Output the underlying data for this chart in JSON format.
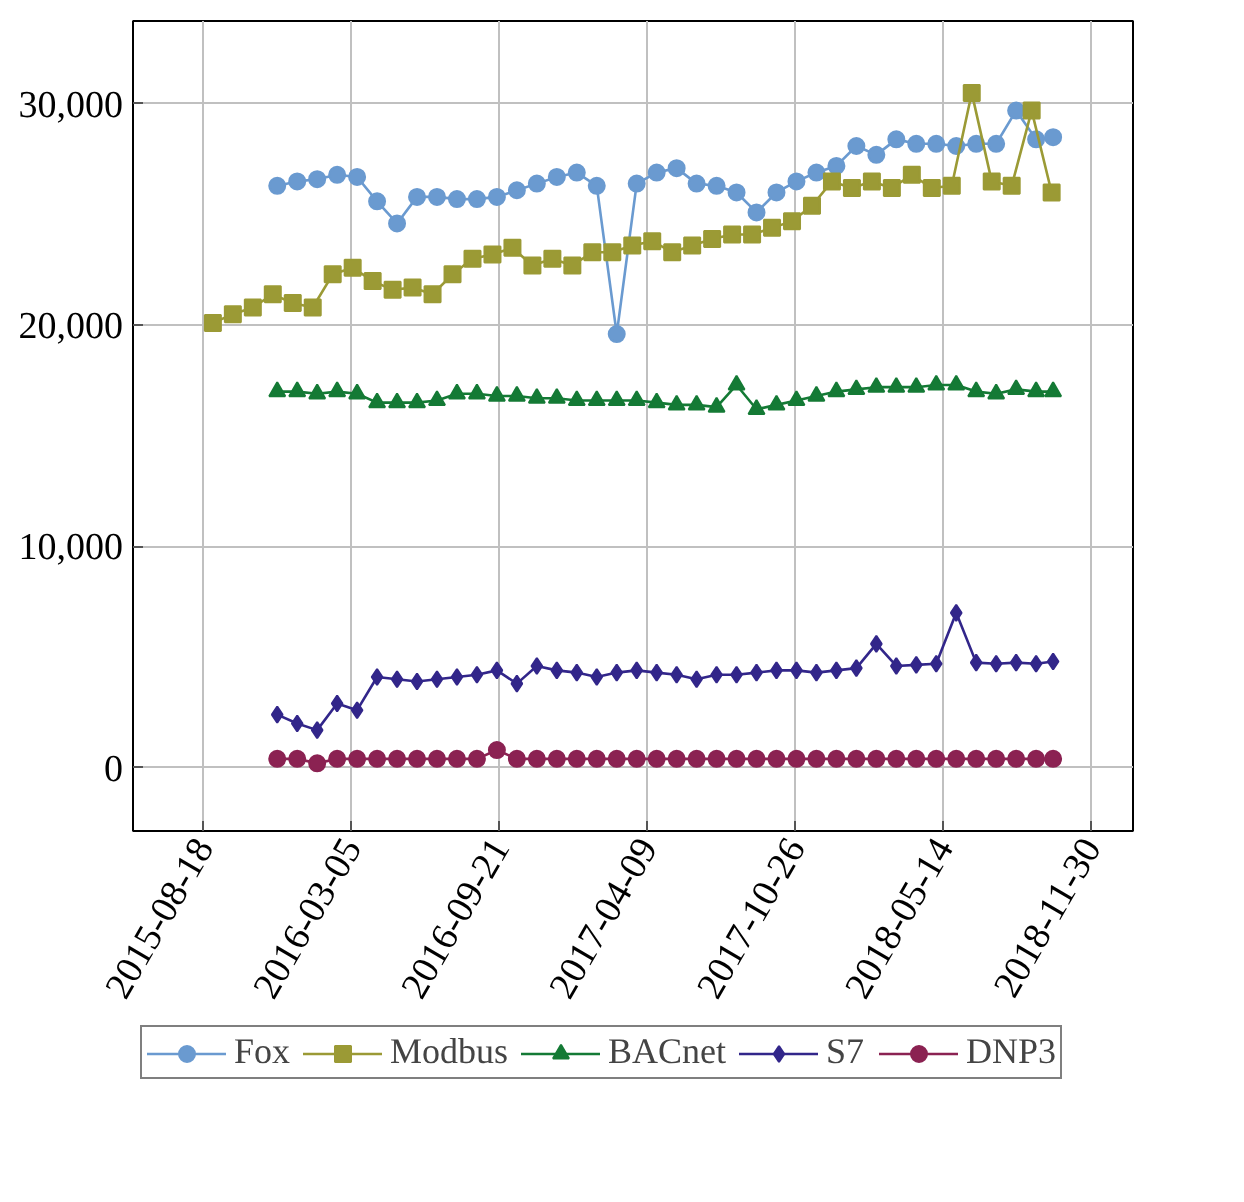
{
  "chart_data": {
    "type": "line",
    "xlim": [
      "2015-05-15",
      "2019-01-26"
    ],
    "ylim": [
      -2860,
      33750
    ],
    "xticks": [
      "2015-08-18",
      "2016-03-05",
      "2016-09-21",
      "2017-04-09",
      "2017-10-26",
      "2018-05-14",
      "2018-11-30"
    ],
    "yticks": [
      {
        "value": 0,
        "label": "0"
      },
      {
        "value": 10000,
        "label": "10,000"
      },
      {
        "value": 20000,
        "label": "20,000"
      },
      {
        "value": 30000,
        "label": "30,000"
      }
    ],
    "grid": true,
    "legend": "bottom",
    "line_style": "solid",
    "x": [
      "2015-11-26",
      "2015-12-23",
      "2016-01-19",
      "2016-02-15",
      "2016-03-13",
      "2016-04-09",
      "2016-05-06",
      "2016-06-02",
      "2016-06-29",
      "2016-07-26",
      "2016-08-22",
      "2016-09-18",
      "2016-10-15",
      "2016-11-11",
      "2016-12-08",
      "2017-01-04",
      "2017-01-31",
      "2017-02-27",
      "2017-03-26",
      "2017-04-22",
      "2017-05-19",
      "2017-06-15",
      "2017-07-12",
      "2017-08-08",
      "2017-09-04",
      "2017-10-01",
      "2017-10-28",
      "2017-11-24",
      "2017-12-21",
      "2018-01-17",
      "2018-02-13",
      "2018-03-12",
      "2018-04-08",
      "2018-05-05",
      "2018-06-01",
      "2018-06-28",
      "2018-07-25",
      "2018-08-21",
      "2018-09-17",
      "2018-10-10"
    ],
    "series": [
      {
        "name": "Fox",
        "color": "#6a9ad0",
        "marker": "circle",
        "values": [
          26300,
          26500,
          26600,
          26800,
          26700,
          25600,
          24600,
          25800,
          25800,
          25700,
          25700,
          25800,
          26100,
          26400,
          26700,
          26900,
          26300,
          19600,
          26400,
          26900,
          27100,
          26400,
          26300,
          26000,
          25100,
          26000,
          26500,
          26900,
          27200,
          28100,
          27700,
          28400,
          28200,
          28200,
          28100,
          28200,
          28200,
          29700,
          28400,
          28500
        ]
      },
      {
        "name": "Modbus",
        "color": "#9b9a35",
        "marker": "square",
        "x": [
          "2015-08-31",
          "2015-09-27",
          "2015-10-24",
          "2015-11-20",
          "2015-12-17",
          "2016-01-13",
          "2016-02-09",
          "2016-03-07",
          "2016-04-03",
          "2016-04-30",
          "2016-05-27",
          "2016-06-23",
          "2016-07-20",
          "2016-08-16",
          "2016-09-12",
          "2016-10-09",
          "2016-11-05",
          "2016-12-02",
          "2016-12-29",
          "2017-01-25",
          "2017-02-21",
          "2017-03-20",
          "2017-04-16",
          "2017-05-13",
          "2017-06-09",
          "2017-07-06",
          "2017-08-02",
          "2017-08-29",
          "2017-09-25",
          "2017-10-22",
          "2017-11-18",
          "2017-12-15",
          "2018-01-11",
          "2018-02-07",
          "2018-03-06",
          "2018-04-02",
          "2018-04-29",
          "2018-05-26",
          "2018-06-22",
          "2018-07-19",
          "2018-08-15",
          "2018-09-11",
          "2018-10-08"
        ],
        "values": [
          20100,
          20500,
          20800,
          21400,
          21000,
          20800,
          22300,
          22600,
          22000,
          21600,
          21700,
          21400,
          22300,
          23000,
          23200,
          23500,
          22700,
          23000,
          22700,
          23300,
          23300,
          23600,
          23800,
          23300,
          23600,
          23900,
          24100,
          24100,
          24400,
          24700,
          25400,
          26500,
          26200,
          26500,
          26200,
          26800,
          26200,
          26300,
          30500,
          26500,
          26300,
          29700,
          26000
        ]
      },
      {
        "name": "BACnet",
        "color": "#147a35",
        "marker": "triangle",
        "values": [
          17000,
          17000,
          16900,
          17000,
          16900,
          16500,
          16500,
          16500,
          16600,
          16900,
          16900,
          16800,
          16800,
          16700,
          16700,
          16600,
          16600,
          16600,
          16600,
          16500,
          16400,
          16400,
          16300,
          17300,
          16200,
          16400,
          16600,
          16800,
          17000,
          17100,
          17200,
          17200,
          17200,
          17300,
          17300,
          17000,
          16900,
          17100,
          17000,
          17000
        ]
      },
      {
        "name": "S7",
        "color": "#32268a",
        "marker": "diamond",
        "values": [
          2400,
          2000,
          1700,
          2900,
          2600,
          4100,
          4000,
          3900,
          4000,
          4100,
          4200,
          4400,
          3800,
          4600,
          4400,
          4300,
          4100,
          4300,
          4400,
          4300,
          4200,
          4000,
          4200,
          4200,
          4300,
          4400,
          4400,
          4300,
          4400,
          4500,
          5600,
          4600,
          4650,
          4700,
          7000,
          4750,
          4700,
          4750,
          4700,
          4800
        ]
      },
      {
        "name": "DNP3",
        "color": "#8b2252",
        "marker": "circle",
        "values": [
          400,
          400,
          200,
          400,
          400,
          400,
          400,
          400,
          400,
          400,
          400,
          800,
          400,
          400,
          400,
          400,
          400,
          400,
          400,
          400,
          400,
          400,
          400,
          400,
          400,
          400,
          400,
          400,
          400,
          400,
          400,
          400,
          400,
          400,
          400,
          400,
          400,
          400,
          400,
          400
        ]
      }
    ]
  }
}
